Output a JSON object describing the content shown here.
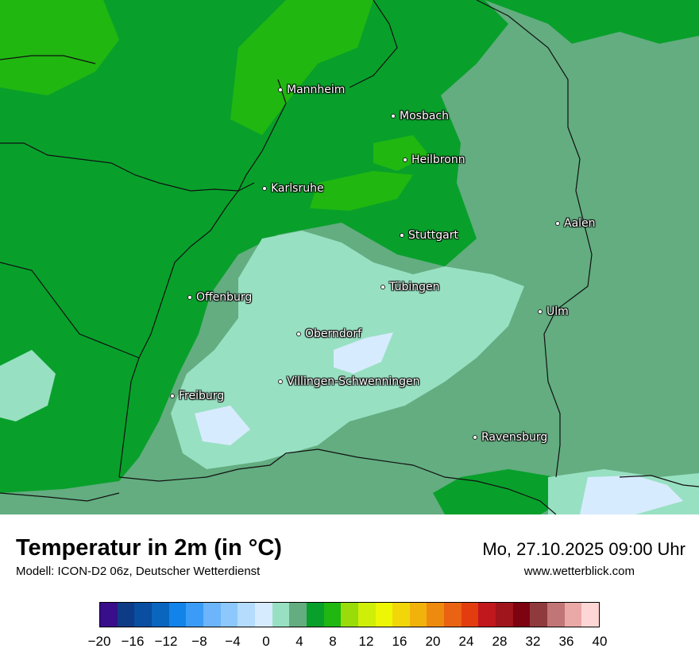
{
  "map": {
    "cities": [
      {
        "name": "Mannheim"
      },
      {
        "name": "Mosbach"
      },
      {
        "name": "Heilbronn"
      },
      {
        "name": "Karlsruhe"
      },
      {
        "name": "Aalen"
      },
      {
        "name": "Stuttgart"
      },
      {
        "name": "Tübingen"
      },
      {
        "name": "Offenburg"
      },
      {
        "name": "Ulm"
      },
      {
        "name": "Oberndorf"
      },
      {
        "name": "Villingen-Schwenningen"
      },
      {
        "name": "Freiburg"
      },
      {
        "name": "Ravensburg"
      }
    ]
  },
  "footer": {
    "title": "Temperatur in 2m (in °C)",
    "model": "Modell: ICON-D2 06z, Deutscher Wetterdienst",
    "datetime": "Mo, 27.10.2025 09:00 Uhr",
    "site": "www.wetterblick.com"
  },
  "legend": {
    "colors": [
      "#380e8a",
      "#0e3b86",
      "#094ea0",
      "#0a65be",
      "#1283e8",
      "#3a9cf6",
      "#6cb5fa",
      "#8cc8fb",
      "#b5dcfc",
      "#d7ebfe",
      "#98e0c2",
      "#63ad80",
      "#08a02b",
      "#20b711",
      "#99dc0a",
      "#cfee08",
      "#edf705",
      "#f2d60a",
      "#f2b20c",
      "#ee8a0e",
      "#ea6312",
      "#e33d0f",
      "#c1181d",
      "#a0141c",
      "#7d0310",
      "#8f3b3d",
      "#c17576",
      "#eaa9a6",
      "#fed6d5"
    ],
    "ticks": [
      "−20",
      "−16",
      "−12",
      "−8",
      "−4",
      "0",
      "4",
      "8",
      "12",
      "16",
      "20",
      "24",
      "28",
      "32",
      "36",
      "40"
    ]
  }
}
